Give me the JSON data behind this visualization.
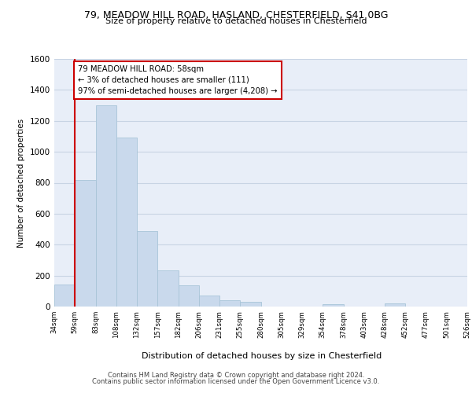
{
  "title_line1": "79, MEADOW HILL ROAD, HASLAND, CHESTERFIELD, S41 0BG",
  "title_line2": "Size of property relative to detached houses in Chesterfield",
  "xlabel": "Distribution of detached houses by size in Chesterfield",
  "ylabel": "Number of detached properties",
  "bar_values": [
    140,
    820,
    1300,
    1090,
    490,
    235,
    135,
    70,
    42,
    28,
    0,
    0,
    0,
    15,
    0,
    0,
    20,
    0,
    0,
    0
  ],
  "bar_labels": [
    "34sqm",
    "59sqm",
    "83sqm",
    "108sqm",
    "132sqm",
    "157sqm",
    "182sqm",
    "206sqm",
    "231sqm",
    "255sqm",
    "280sqm",
    "305sqm",
    "329sqm",
    "354sqm",
    "378sqm",
    "403sqm",
    "428sqm",
    "452sqm",
    "477sqm",
    "501sqm",
    "526sqm"
  ],
  "bar_color": "#c9d9ec",
  "bar_edgecolor": "#a8c4d8",
  "annotation_text": "79 MEADOW HILL ROAD: 58sqm\n← 3% of detached houses are smaller (111)\n97% of semi-detached houses are larger (4,208) →",
  "vline_color": "#cc0000",
  "ylim": [
    0,
    1600
  ],
  "yticks": [
    0,
    200,
    400,
    600,
    800,
    1000,
    1200,
    1400,
    1600
  ],
  "grid_color": "#c8d4e4",
  "bg_color": "#e8eef8",
  "footer_line1": "Contains HM Land Registry data © Crown copyright and database right 2024.",
  "footer_line2": "Contains public sector information licensed under the Open Government Licence v3.0."
}
